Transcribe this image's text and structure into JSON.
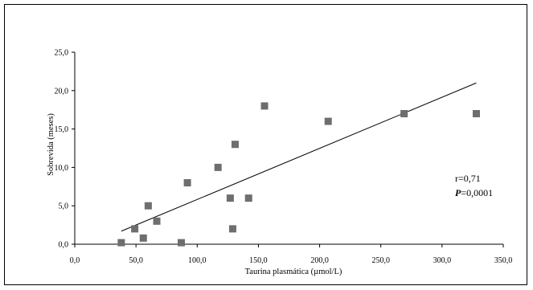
{
  "chart_data": {
    "type": "scatter",
    "title": "",
    "xlabel": "Taurina plasmática (µmol/L)",
    "ylabel": "Sobrevida (meses)",
    "xlim": [
      0,
      350
    ],
    "ylim": [
      0,
      25
    ],
    "xticks": [
      "0,0",
      "50,0",
      "100,0",
      "150,0",
      "200,0",
      "250,0",
      "300,0",
      "350,0"
    ],
    "yticks": [
      "0,0",
      "5,0",
      "10,0",
      "15,0",
      "20,0",
      "25,0"
    ],
    "grid": false,
    "marker_color": "#6e6e6e",
    "points": [
      {
        "x": 38,
        "y": 0.2
      },
      {
        "x": 49,
        "y": 2
      },
      {
        "x": 56,
        "y": 0.8
      },
      {
        "x": 60,
        "y": 5
      },
      {
        "x": 67,
        "y": 3
      },
      {
        "x": 87,
        "y": 0.2
      },
      {
        "x": 92,
        "y": 8
      },
      {
        "x": 117,
        "y": 10
      },
      {
        "x": 127,
        "y": 6
      },
      {
        "x": 129,
        "y": 2
      },
      {
        "x": 131,
        "y": 13
      },
      {
        "x": 142,
        "y": 6
      },
      {
        "x": 155,
        "y": 18
      },
      {
        "x": 207,
        "y": 16
      },
      {
        "x": 269,
        "y": 17
      },
      {
        "x": 328,
        "y": 17
      }
    ],
    "trendline": {
      "x": [
        38,
        328
      ],
      "y": [
        1.7,
        21.0
      ]
    },
    "annotation": {
      "r_text": "r=0,71",
      "p_label": "P",
      "p_value": "=0,0001"
    }
  }
}
